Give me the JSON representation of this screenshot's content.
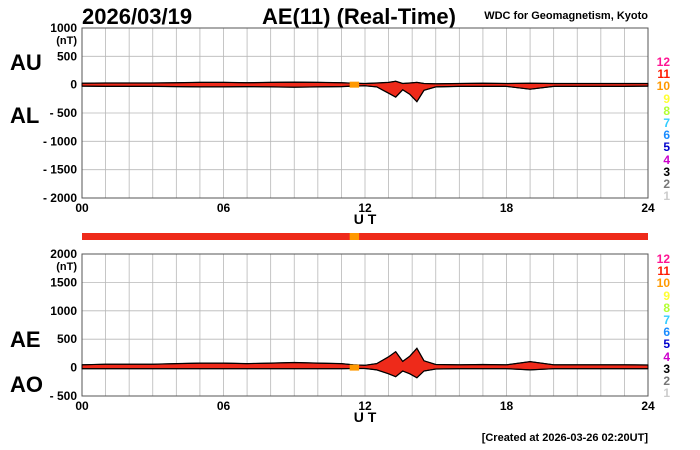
{
  "header": {
    "date": "2026/03/19",
    "title": "AE(11) (Real-Time)",
    "source": "WDC for Geomagnetism, Kyoto"
  },
  "footer": {
    "created": "[Created at 2026-03-26 02:20UT]"
  },
  "activity_scale": {
    "levels": [
      "12",
      "11",
      "10",
      "9",
      "8",
      "7",
      "6",
      "5",
      "4",
      "3",
      "2",
      "1"
    ],
    "colors": [
      "#ff1493",
      "#ff1a00",
      "#ff9900",
      "#ffff33",
      "#b3ff33",
      "#33ccff",
      "#1a8cff",
      "#0000cc",
      "#cc00cc",
      "#000000",
      "#777777",
      "#cccccc"
    ]
  },
  "status_bar": {
    "base_color": "#ee2a1a",
    "segments": [
      {
        "start": 11.35,
        "end": 11.75,
        "color": "#ff9900"
      }
    ]
  },
  "chart_data": [
    {
      "type": "area",
      "panel": "AU/AL",
      "series_labels": [
        "AU",
        "AL"
      ],
      "xlabel": "U T",
      "ylabel": "(nT)",
      "xlim": [
        0,
        24
      ],
      "ylim": [
        -2000,
        1000
      ],
      "xticks": [
        0,
        6,
        12,
        18,
        24
      ],
      "xtick_labels": [
        "00",
        "06",
        "12",
        "18",
        "24"
      ],
      "yticks": [
        1000,
        500,
        0,
        -500,
        -1000,
        -1500,
        -2000
      ],
      "ytick_labels": [
        "1000",
        "500",
        "0",
        "- 500",
        "- 1000",
        "- 1500",
        "- 2000"
      ],
      "grid": true,
      "fill_color": "#ee2a1a",
      "x": [
        0,
        1,
        2,
        3,
        4,
        5,
        6,
        7,
        8,
        9,
        10,
        11,
        11.5,
        12,
        12.5,
        13,
        13.3,
        13.6,
        13.9,
        14.2,
        14.5,
        15,
        16,
        17,
        18,
        19,
        20,
        21,
        22,
        23,
        24
      ],
      "upper": [
        25,
        30,
        30,
        30,
        35,
        40,
        40,
        35,
        40,
        45,
        40,
        35,
        25,
        20,
        30,
        40,
        60,
        20,
        30,
        40,
        20,
        15,
        20,
        25,
        20,
        25,
        20,
        20,
        20,
        20,
        20
      ],
      "lower": [
        -25,
        -30,
        -30,
        -30,
        -35,
        -40,
        -40,
        -35,
        -40,
        -45,
        -40,
        -35,
        -25,
        -20,
        -40,
        -150,
        -220,
        -90,
        -170,
        -300,
        -100,
        -40,
        -30,
        -30,
        -30,
        -80,
        -30,
        -30,
        -30,
        -30,
        -25
      ]
    },
    {
      "type": "area",
      "panel": "AE/AO",
      "series_labels": [
        "AE",
        "AO"
      ],
      "xlabel": "U T",
      "ylabel": "(nT)",
      "xlim": [
        0,
        24
      ],
      "ylim": [
        -500,
        2000
      ],
      "xticks": [
        0,
        6,
        12,
        18,
        24
      ],
      "xtick_labels": [
        "00",
        "06",
        "12",
        "18",
        "24"
      ],
      "yticks": [
        2000,
        1500,
        1000,
        500,
        0,
        -500
      ],
      "ytick_labels": [
        "2000",
        "1500",
        "1000",
        "500",
        "0",
        "- 500"
      ],
      "grid": true,
      "fill_color": "#ee2a1a",
      "x": [
        0,
        1,
        2,
        3,
        4,
        5,
        6,
        7,
        8,
        9,
        10,
        11,
        11.5,
        12,
        12.5,
        13,
        13.3,
        13.6,
        13.9,
        14.2,
        14.5,
        15,
        16,
        17,
        18,
        19,
        20,
        21,
        22,
        23,
        24
      ],
      "upper": [
        50,
        60,
        60,
        60,
        70,
        80,
        80,
        70,
        80,
        90,
        80,
        70,
        50,
        40,
        70,
        190,
        280,
        110,
        200,
        340,
        120,
        55,
        50,
        55,
        50,
        105,
        50,
        50,
        50,
        50,
        45
      ],
      "lower": [
        -20,
        -20,
        -20,
        -20,
        -20,
        -20,
        -20,
        -20,
        -20,
        -20,
        -20,
        -20,
        -15,
        -15,
        -40,
        -110,
        -160,
        -60,
        -110,
        -180,
        -60,
        -25,
        -20,
        -20,
        -20,
        -40,
        -20,
        -20,
        -20,
        -20,
        -20
      ]
    }
  ]
}
